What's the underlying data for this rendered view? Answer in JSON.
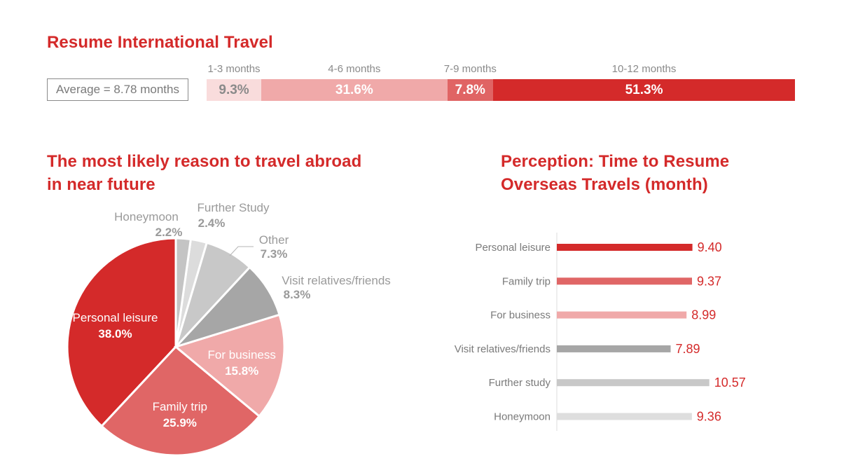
{
  "titles": {
    "travel": "Resume International Travel",
    "reason": "The most likely reason to travel abroad in near future",
    "perception": "Perception: Time to Resume Overseas Travels (month)"
  },
  "average_label": "Average = 8.78 months",
  "chart_data": [
    {
      "type": "bar",
      "orientation": "horizontal-stacked",
      "title": "Resume International Travel",
      "categories": [
        "1-3 months",
        "4-6 months",
        "7-9 months",
        "10-12 months"
      ],
      "values": [
        9.3,
        31.6,
        7.8,
        51.3
      ],
      "labels": [
        "9.3%",
        "31.6%",
        "7.8%",
        "51.3%"
      ],
      "colors": [
        "#f9dcdc",
        "#f0a9a9",
        "#e06464",
        "#d42a2a"
      ],
      "label_colors": [
        "#8a8a8a",
        "#ffffff",
        "#ffffff",
        "#ffffff"
      ]
    },
    {
      "type": "pie",
      "title": "The most likely reason to travel abroad in near future",
      "categories": [
        "Personal leisure",
        "Family trip",
        "For business",
        "Visit relatives/friends",
        "Other",
        "Further Study",
        "Honeymoon"
      ],
      "values": [
        38.0,
        25.9,
        15.8,
        8.3,
        7.3,
        2.4,
        2.2
      ],
      "labels": [
        "38.0%",
        "25.9%",
        "15.8%",
        "8.3%",
        "7.3%",
        "2.4%",
        "2.2%"
      ],
      "colors": [
        "#d42a2a",
        "#e06666",
        "#f0a9a9",
        "#a6a6a6",
        "#c8c8c8",
        "#dcdcdc",
        "#c4c4c4"
      ]
    },
    {
      "type": "bar",
      "orientation": "horizontal",
      "title": "Perception: Time to Resume Overseas Travels (month)",
      "categories": [
        "Personal leisure",
        "Family trip",
        "For business",
        "Visit relatives/friends",
        "Further study",
        "Honeymoon"
      ],
      "values": [
        9.4,
        9.37,
        8.99,
        7.89,
        10.57,
        9.36
      ],
      "labels": [
        "9.40",
        "9.37",
        "8.99",
        "7.89",
        "10.57",
        "9.36"
      ],
      "colors": [
        "#d42a2a",
        "#e06666",
        "#f0a9a9",
        "#a6a6a6",
        "#c8c8c8",
        "#dedede"
      ],
      "value_color": "#d42a2a"
    }
  ]
}
